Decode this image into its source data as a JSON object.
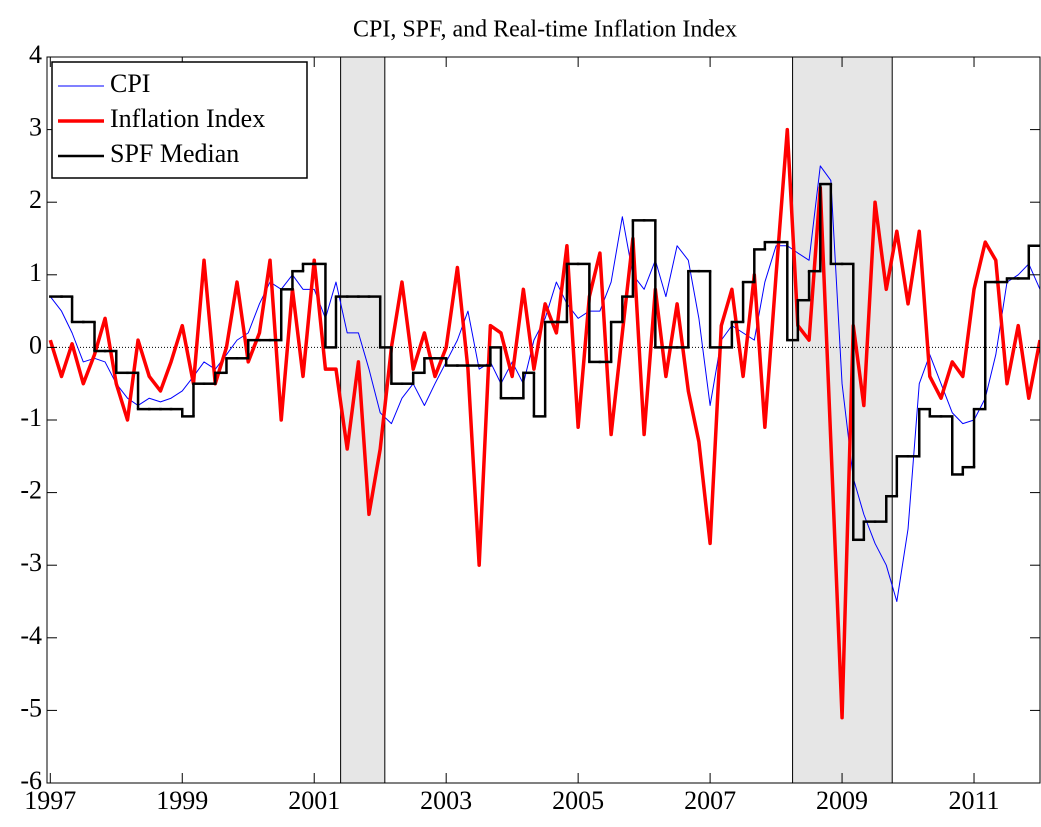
{
  "chart_data": {
    "type": "line",
    "title": "CPI, SPF, and Real-time Inflation Index",
    "x": [
      1997,
      1997.17,
      1997.33,
      1997.5,
      1997.67,
      1997.83,
      1998,
      1998.17,
      1998.33,
      1998.5,
      1998.67,
      1998.83,
      1999,
      1999.17,
      1999.33,
      1999.5,
      1999.67,
      1999.83,
      2000,
      2000.17,
      2000.33,
      2000.5,
      2000.67,
      2000.83,
      2001,
      2001.17,
      2001.33,
      2001.5,
      2001.67,
      2001.83,
      2002,
      2002.17,
      2002.33,
      2002.5,
      2002.67,
      2002.83,
      2003,
      2003.17,
      2003.33,
      2003.5,
      2003.67,
      2003.83,
      2004,
      2004.17,
      2004.33,
      2004.5,
      2004.67,
      2004.83,
      2005,
      2005.17,
      2005.33,
      2005.5,
      2005.67,
      2005.83,
      2006,
      2006.17,
      2006.33,
      2006.5,
      2006.67,
      2006.83,
      2007,
      2007.17,
      2007.33,
      2007.5,
      2007.67,
      2007.83,
      2008,
      2008.17,
      2008.33,
      2008.5,
      2008.67,
      2008.83,
      2009,
      2009.17,
      2009.33,
      2009.5,
      2009.67,
      2009.83,
      2010,
      2010.17,
      2010.33,
      2010.5,
      2010.67,
      2010.83,
      2011,
      2011.17,
      2011.33,
      2011.5,
      2011.67,
      2011.83,
      2012
    ],
    "series": [
      {
        "name": "CPI",
        "color": "#0000ff",
        "width": 1,
        "style": "line",
        "values": [
          0.7,
          0.5,
          0.2,
          -0.2,
          -0.15,
          -0.2,
          -0.5,
          -0.7,
          -0.8,
          -0.7,
          -0.75,
          -0.7,
          -0.6,
          -0.4,
          -0.2,
          -0.3,
          -0.1,
          0.1,
          0.2,
          0.6,
          0.9,
          0.8,
          1.0,
          0.8,
          0.8,
          0.4,
          0.9,
          0.2,
          0.2,
          -0.3,
          -0.9,
          -1.05,
          -0.7,
          -0.5,
          -0.8,
          -0.5,
          -0.2,
          0.1,
          0.5,
          -0.3,
          -0.2,
          -0.5,
          -0.2,
          -0.5,
          0.1,
          0.4,
          0.9,
          0.6,
          0.4,
          0.5,
          0.5,
          0.9,
          1.8,
          1.0,
          0.8,
          1.2,
          0.7,
          1.4,
          1.2,
          0.4,
          -0.8,
          0.1,
          0.3,
          0.2,
          0.1,
          0.9,
          1.4,
          1.4,
          1.3,
          1.2,
          2.5,
          2.3,
          -0.5,
          -1.8,
          -2.3,
          -2.7,
          -3.0,
          -3.5,
          -2.5,
          -0.5,
          -0.1,
          -0.5,
          -0.9,
          -1.05,
          -1.0,
          -0.7,
          -0.1,
          0.9,
          1.0,
          1.15,
          0.8
        ]
      },
      {
        "name": "Inflation Index",
        "color": "#ff0000",
        "width": 3.5,
        "style": "line",
        "values": [
          0.1,
          -0.4,
          0.05,
          -0.5,
          -0.1,
          0.4,
          -0.5,
          -1.0,
          0.1,
          -0.4,
          -0.6,
          -0.2,
          0.3,
          -0.5,
          1.2,
          -0.5,
          0.0,
          0.9,
          -0.2,
          0.2,
          1.2,
          -1.0,
          0.8,
          -0.4,
          1.2,
          -0.3,
          -0.3,
          -1.4,
          -0.2,
          -2.3,
          -1.4,
          0.0,
          0.9,
          -0.3,
          0.2,
          -0.4,
          0.0,
          1.1,
          -0.3,
          -3.0,
          0.3,
          0.2,
          -0.4,
          0.8,
          -0.3,
          0.6,
          0.2,
          1.4,
          -1.1,
          0.7,
          1.3,
          -1.2,
          0.2,
          1.5,
          -1.2,
          0.8,
          -0.4,
          0.6,
          -0.6,
          -1.3,
          -2.7,
          0.3,
          0.8,
          -0.4,
          1.0,
          -1.1,
          1.0,
          3.0,
          0.3,
          0.1,
          2.2,
          -1.3,
          -5.1,
          0.3,
          -0.8,
          2.0,
          0.8,
          1.6,
          0.6,
          1.6,
          -0.4,
          -0.7,
          -0.2,
          -0.4,
          0.8,
          1.45,
          1.2,
          -0.5,
          0.3,
          -0.7,
          0.1
        ]
      },
      {
        "name": "SPF Median",
        "color": "#000000",
        "width": 2.5,
        "style": "step",
        "values": [
          0.7,
          0.7,
          0.35,
          0.35,
          -0.05,
          -0.05,
          -0.35,
          -0.35,
          -0.85,
          -0.85,
          -0.85,
          -0.85,
          -0.95,
          -0.5,
          -0.5,
          -0.35,
          -0.15,
          -0.15,
          0.1,
          0.1,
          0.1,
          0.8,
          1.05,
          1.15,
          1.15,
          0,
          0.7,
          0.7,
          0.7,
          0.7,
          0,
          -0.5,
          -0.5,
          -0.35,
          -0.15,
          -0.15,
          -0.25,
          -0.25,
          -0.25,
          -0.25,
          0,
          -0.7,
          -0.7,
          -0.35,
          -0.95,
          0.35,
          0.35,
          1.15,
          1.15,
          -0.2,
          -0.2,
          0.35,
          0.7,
          1.75,
          1.75,
          0,
          0,
          0,
          1.05,
          1.05,
          0,
          0,
          0.35,
          0.9,
          1.35,
          1.45,
          1.45,
          0.1,
          0.65,
          1.05,
          2.25,
          1.15,
          1.15,
          -2.65,
          -2.4,
          -2.4,
          -2.05,
          -1.5,
          -1.5,
          -0.85,
          -0.95,
          -0.95,
          -1.75,
          -1.65,
          -0.85,
          0.9,
          0.9,
          0.95,
          0.95,
          1.4,
          1.4
        ]
      }
    ],
    "shaded_regions": [
      [
        2001.4,
        2002.07
      ],
      [
        2008.25,
        2009.76
      ]
    ],
    "xlim": [
      1996.95,
      2012.0
    ],
    "xticks": [
      1997,
      1999,
      2001,
      2003,
      2005,
      2007,
      2009,
      2011
    ],
    "ylim": [
      -6,
      4
    ],
    "yticks": [
      4,
      3,
      2,
      1,
      0,
      -1,
      -2,
      -3,
      -4,
      -5,
      -6
    ],
    "legend": "upper-left"
  }
}
